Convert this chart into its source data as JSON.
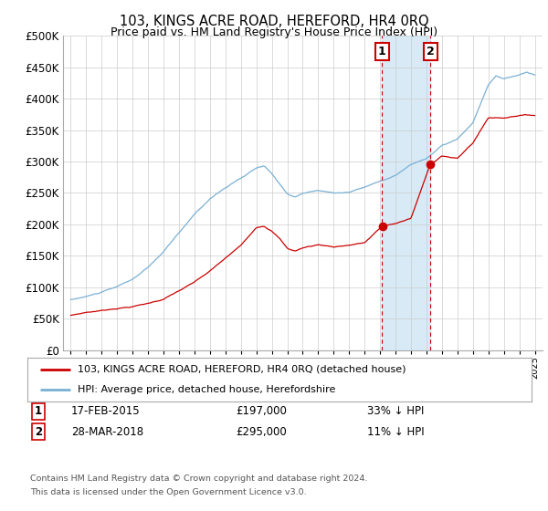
{
  "title": "103, KINGS ACRE ROAD, HEREFORD, HR4 0RQ",
  "subtitle": "Price paid vs. HM Land Registry's House Price Index (HPI)",
  "legend_line1": "103, KINGS ACRE ROAD, HEREFORD, HR4 0RQ (detached house)",
  "legend_line2": "HPI: Average price, detached house, Herefordshire",
  "transaction1": {
    "label": "1",
    "date": 2015.12,
    "price": 197000,
    "date_str": "17-FEB-2015",
    "pct": "33%"
  },
  "transaction2": {
    "label": "2",
    "date": 2018.24,
    "price": 295000,
    "date_str": "28-MAR-2018",
    "pct": "11%"
  },
  "footer1": "Contains HM Land Registry data © Crown copyright and database right 2024.",
  "footer2": "This data is licensed under the Open Government Licence v3.0.",
  "red_color": "#cc0000",
  "blue_color": "#7ab0d4",
  "shade_color": "#d8eaf6",
  "ylim": [
    0,
    500000
  ],
  "xlim": [
    1994.5,
    2025.5
  ]
}
